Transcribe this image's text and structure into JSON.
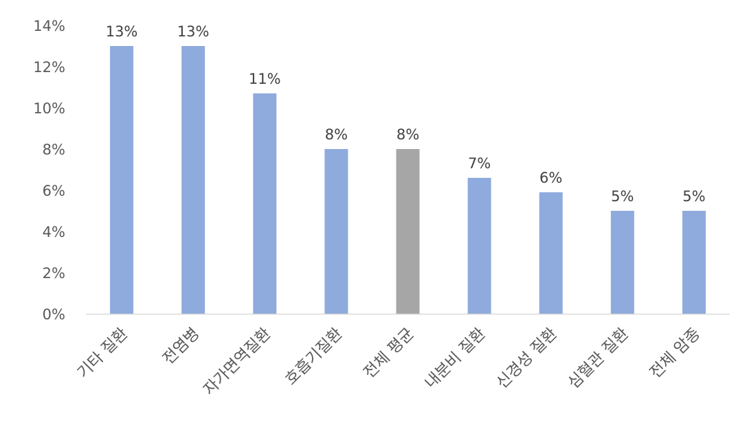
{
  "chart_data": {
    "type": "bar",
    "categories": [
      "기타 질환",
      "전염병",
      "자가면역질환",
      "호흡기질환",
      "전체 평균",
      "내분비 질환",
      "신경성 질환",
      "심혈관 질환",
      "전체 암종"
    ],
    "values": [
      13,
      13,
      10.7,
      8,
      8,
      6.6,
      5.9,
      5,
      5
    ],
    "data_labels": [
      "13%",
      "13%",
      "11%",
      "8%",
      "8%",
      "7%",
      "6%",
      "5%",
      "5%"
    ],
    "highlight_index": 4,
    "ylim": [
      0,
      14
    ],
    "yticks": [
      0,
      2,
      4,
      6,
      8,
      10,
      12,
      14
    ],
    "ytick_labels": [
      "0%",
      "2%",
      "4%",
      "6%",
      "8%",
      "10%",
      "12%",
      "14%"
    ],
    "title": "",
    "xlabel": "",
    "ylabel": "",
    "grid": false,
    "legend": "none",
    "colors": {
      "bar": "#8faadc",
      "highlight": "#a6a6a6",
      "axis": "#d9d9d9"
    }
  }
}
